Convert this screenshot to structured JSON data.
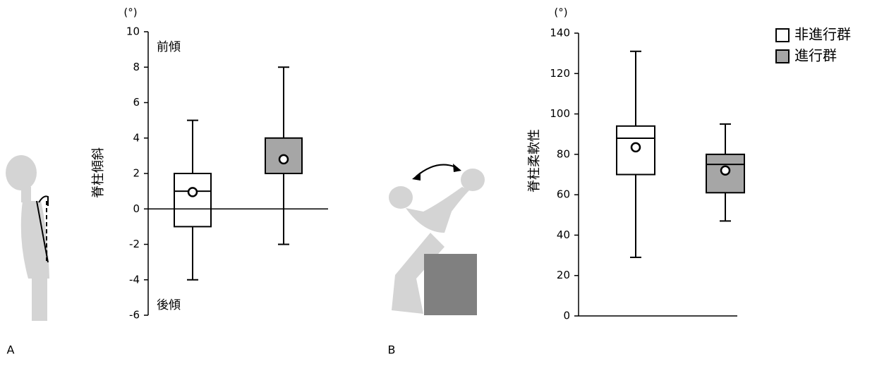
{
  "chart_data": [
    {
      "type": "box",
      "unit": "(°)",
      "y_label": "脊柱傾斜",
      "annotations": [
        "前傾",
        "後傾"
      ],
      "panel": "A",
      "ylim": [
        -6,
        10
      ],
      "yticks": [
        -6,
        -4,
        -2,
        0,
        2,
        4,
        6,
        8,
        10
      ],
      "series": [
        {
          "color": "#ffffff",
          "min": -4,
          "q1": -1,
          "median": 1,
          "q3": 2,
          "max": 5,
          "mean": 0.95
        },
        {
          "color": "#a6a6a6",
          "min": -2,
          "q1": 2,
          "median": 2,
          "q3": 4,
          "max": 8,
          "mean": 2.8
        }
      ]
    },
    {
      "type": "box",
      "unit": "(°)",
      "y_label": "脊柱柔軟性",
      "panel": "B",
      "ylim": [
        0,
        140
      ],
      "yticks": [
        0,
        20,
        40,
        60,
        80,
        100,
        120,
        140
      ],
      "series": [
        {
          "name": "非進行群",
          "color": "#ffffff",
          "min": 29,
          "q1": 70,
          "median": 88,
          "q3": 94,
          "max": 131,
          "mean": 83.5
        },
        {
          "name": "進行群",
          "color": "#a6a6a6",
          "min": 47,
          "q1": 61,
          "median": 75,
          "q3": 80,
          "max": 95,
          "mean": 72
        }
      ]
    }
  ]
}
